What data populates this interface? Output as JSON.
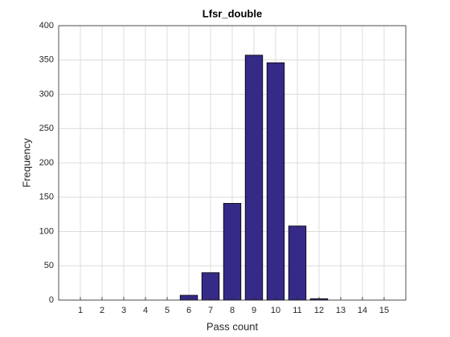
{
  "chart_data": {
    "type": "bar",
    "title": "Lfsr_double",
    "xlabel": "Pass count",
    "ylabel": "Frequency",
    "x": [
      1,
      2,
      3,
      4,
      5,
      6,
      7,
      8,
      9,
      10,
      11,
      12,
      13,
      14,
      15
    ],
    "values": [
      0,
      0,
      0,
      0,
      0,
      7,
      40,
      141,
      357,
      346,
      108,
      2,
      0,
      0,
      0
    ],
    "color": "#352a87",
    "xlim": [
      0,
      16
    ],
    "xticks": [
      1,
      2,
      3,
      4,
      5,
      6,
      7,
      8,
      9,
      10,
      11,
      12,
      13,
      14,
      15
    ],
    "ylim": [
      0,
      400
    ],
    "yticks": [
      0,
      50,
      100,
      150,
      200,
      250,
      300,
      350,
      400
    ],
    "grid": true
  }
}
